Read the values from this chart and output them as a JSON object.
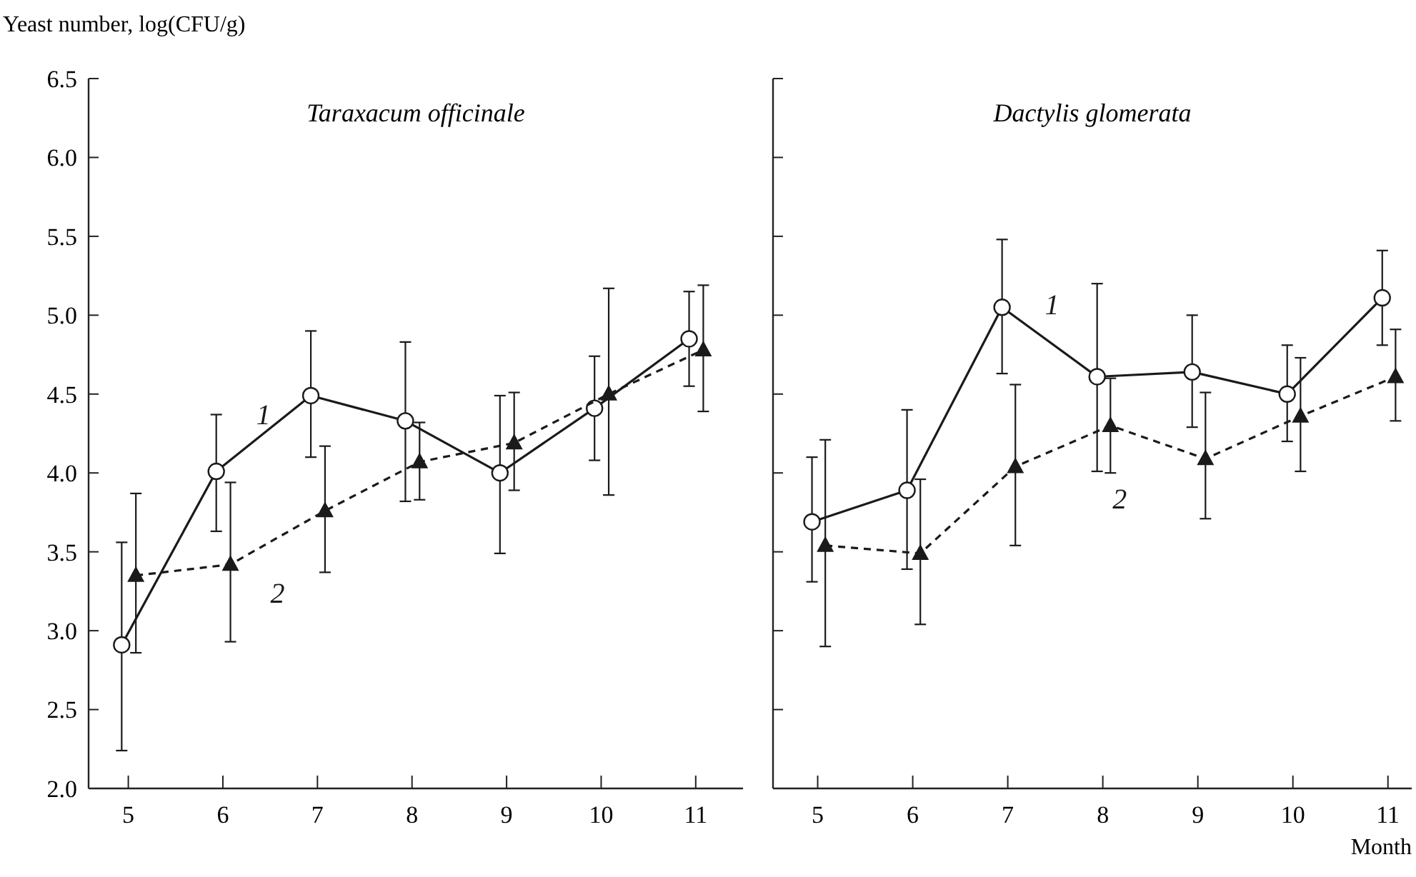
{
  "chart_data": [
    {
      "type": "line",
      "title": "Taraxacum officinale",
      "ylabel": "Yeast number, log(CFU/g)",
      "xlim": [
        4.58,
        11.5
      ],
      "xticks": [
        5,
        6,
        7,
        8,
        9,
        10,
        11
      ],
      "ylim": [
        2.0,
        6.5
      ],
      "yticks": [
        {
          "value": 2.0,
          "label": "2.0"
        },
        {
          "value": 2.5,
          "label": "2.5"
        },
        {
          "value": 3.0,
          "label": "3.0"
        },
        {
          "value": 3.5,
          "label": "3.5"
        },
        {
          "value": 4.0,
          "label": "4.0"
        },
        {
          "value": 4.5,
          "label": "4.5"
        },
        {
          "value": 5.0,
          "label": "5.0"
        },
        {
          "value": 5.5,
          "label": "5.5"
        },
        {
          "value": 6.0,
          "label": "6.0"
        },
        {
          "value": 6.5,
          "label": "6.5"
        }
      ],
      "series": [
        {
          "name": "1",
          "color": "#1a1a1a",
          "marker": "circle",
          "line_style": "solid",
          "x": [
            4.93,
            5.93,
            6.93,
            7.93,
            8.93,
            9.93,
            10.93
          ],
          "values": [
            2.91,
            4.01,
            4.49,
            4.33,
            4.0,
            4.41,
            4.85
          ],
          "errors": [
            [
              2.24,
              3.56
            ],
            [
              3.63,
              4.37
            ],
            [
              4.1,
              4.9
            ],
            [
              3.82,
              4.83
            ],
            [
              3.49,
              4.49
            ],
            [
              4.08,
              4.74
            ],
            [
              4.55,
              5.15
            ]
          ]
        },
        {
          "name": "2",
          "color": "#1a1a1a",
          "marker": "triangle",
          "line_style": "dashed",
          "x": [
            5.08,
            6.08,
            7.08,
            8.08,
            9.08,
            10.08,
            11.08
          ],
          "values": [
            3.35,
            3.42,
            3.76,
            4.07,
            4.19,
            4.5,
            4.78
          ],
          "errors": [
            [
              2.86,
              3.87
            ],
            [
              2.93,
              3.94
            ],
            [
              3.37,
              4.17
            ],
            [
              3.83,
              4.32
            ],
            [
              3.89,
              4.51
            ],
            [
              3.86,
              5.17
            ],
            [
              4.39,
              5.19
            ]
          ]
        }
      ]
    },
    {
      "type": "line",
      "title": "Dactylis glomerata",
      "xlabel": "Month",
      "xlim": [
        4.53,
        11.25
      ],
      "xticks": [
        5,
        6,
        7,
        8,
        9,
        10,
        11
      ],
      "ylim": [
        2.0,
        6.5
      ],
      "yticks": [
        2.0,
        2.5,
        3.0,
        3.5,
        4.0,
        4.5,
        5.0,
        5.5,
        6.0,
        6.5
      ],
      "tick_labels": "x",
      "series": [
        {
          "name": "1",
          "color": "#1a1a1a",
          "marker": "circle",
          "line_style": "solid",
          "x": [
            4.94,
            5.94,
            6.94,
            7.94,
            8.94,
            9.94,
            10.94
          ],
          "values": [
            3.69,
            3.89,
            5.05,
            4.61,
            4.64,
            4.5,
            5.11
          ],
          "errors": [
            [
              3.31,
              4.1
            ],
            [
              3.39,
              4.4
            ],
            [
              4.63,
              5.48
            ],
            [
              4.01,
              5.2
            ],
            [
              4.29,
              5.0
            ],
            [
              4.2,
              4.81
            ],
            [
              4.81,
              5.41
            ]
          ]
        },
        {
          "name": "2",
          "color": "#1a1a1a",
          "marker": "triangle",
          "line_style": "dashed",
          "x": [
            5.08,
            6.08,
            7.08,
            8.08,
            9.08,
            10.08,
            11.08
          ],
          "values": [
            3.54,
            3.49,
            4.04,
            4.3,
            4.09,
            4.36,
            4.61
          ],
          "errors": [
            [
              2.9,
              4.21
            ],
            [
              3.04,
              3.96
            ],
            [
              3.54,
              4.56
            ],
            [
              4.0,
              4.6
            ],
            [
              3.71,
              4.51
            ],
            [
              4.01,
              4.73
            ],
            [
              4.33,
              4.91
            ]
          ]
        }
      ]
    }
  ]
}
